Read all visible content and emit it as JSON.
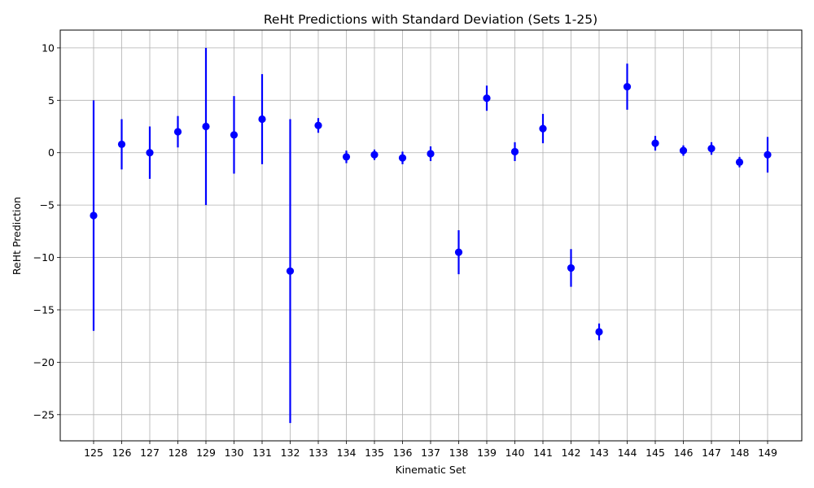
{
  "chart_data": {
    "type": "scatter",
    "title": "ReHt Predictions with Standard Deviation (Sets 1-25)",
    "xlabel": "Kinematic Set",
    "ylabel": "ReHt Prediction",
    "categories": [
      "125",
      "126",
      "127",
      "128",
      "129",
      "130",
      "131",
      "132",
      "133",
      "134",
      "135",
      "136",
      "137",
      "138",
      "139",
      "140",
      "141",
      "142",
      "143",
      "144",
      "145",
      "146",
      "147",
      "148",
      "149"
    ],
    "series": [
      {
        "values": [
          -6.0,
          0.8,
          0.0,
          2.0,
          2.5,
          1.7,
          3.2,
          -11.3,
          2.6,
          -0.4,
          -0.2,
          -0.5,
          -0.1,
          -9.5,
          5.2,
          0.1,
          2.3,
          -11.0,
          -17.1,
          6.3,
          0.9,
          0.2,
          0.4,
          -0.9,
          -0.2
        ],
        "errors": [
          11.0,
          2.4,
          2.5,
          1.5,
          7.5,
          3.7,
          4.3,
          14.5,
          0.7,
          0.6,
          0.5,
          0.6,
          0.7,
          2.1,
          1.2,
          0.9,
          1.4,
          1.8,
          0.8,
          2.2,
          0.7,
          0.5,
          0.6,
          0.5,
          1.7
        ]
      }
    ],
    "y_ticks": [
      10,
      5,
      0,
      -5,
      -10,
      -15,
      -20,
      -25
    ],
    "y_tick_labels": [
      "10",
      "5",
      "0",
      "−5",
      "−10",
      "−15",
      "−20",
      "−25"
    ],
    "ylim": [
      -27.5,
      11.7
    ],
    "grid": true,
    "color": "#0000ff"
  }
}
